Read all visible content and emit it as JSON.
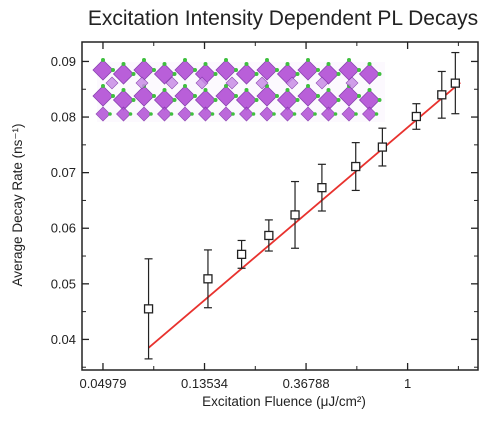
{
  "colors": {
    "fit_line": "#e8322e",
    "axis": "#222222",
    "crystal_octahedra": "#b24fd6",
    "crystal_atoms": "#3fbf3f",
    "background": "#ffffff"
  },
  "chart_data": {
    "type": "scatter",
    "title": "Excitation Intensity Dependent PL Decays",
    "xlabel": "Excitation Fluence (μJ/cm²)",
    "ylabel": "Average Decay Rate (ns⁻¹)",
    "x_scale": "log",
    "xlim": [
      0.0405,
      2.0
    ],
    "ylim": [
      0.0345,
      0.0935
    ],
    "x_ticks": [
      {
        "value": 0.04979,
        "label": "0.04979"
      },
      {
        "value": 0.13534,
        "label": "0.13534"
      },
      {
        "value": 0.36788,
        "label": "0.36788"
      },
      {
        "value": 1.0,
        "label": "1"
      }
    ],
    "y_ticks": [
      {
        "value": 0.04,
        "label": "0.04"
      },
      {
        "value": 0.05,
        "label": "0.05"
      },
      {
        "value": 0.06,
        "label": "0.06"
      },
      {
        "value": 0.07,
        "label": "0.07"
      },
      {
        "value": 0.08,
        "label": "0.08"
      },
      {
        "value": 0.09,
        "label": "0.09"
      }
    ],
    "series": [
      {
        "marker": "open-square",
        "x": [
          0.078,
          0.14,
          0.195,
          0.255,
          0.33,
          0.43,
          0.6,
          0.78,
          1.09,
          1.4,
          1.6
        ],
        "y": [
          0.0455,
          0.0509,
          0.0553,
          0.0587,
          0.0624,
          0.0673,
          0.0711,
          0.0746,
          0.0801,
          0.084,
          0.0861
        ],
        "y_err": [
          0.009,
          0.0052,
          0.0025,
          0.0028,
          0.006,
          0.0042,
          0.0043,
          0.0034,
          0.0023,
          0.0042,
          0.0055
        ]
      }
    ],
    "fit_line": {
      "x": [
        0.078,
        1.68
      ],
      "y": [
        0.0385,
        0.0862
      ]
    },
    "grid": false,
    "legend": "none",
    "inset_image": "perovskite crystal structure (purple octahedra, green atoms)"
  }
}
